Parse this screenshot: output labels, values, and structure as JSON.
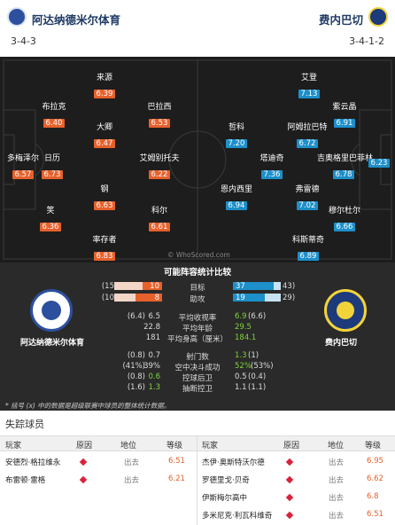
{
  "header": {
    "home_team": "阿达纳德米尔体育",
    "away_team": "费内巴切",
    "home_formation": "3-4-3",
    "away_formation": "3-4-1-2"
  },
  "pitch": {
    "watermark": "© WhoScored.com",
    "home_players": [
      {
        "name": "来源",
        "rating": "6.39"
      },
      {
        "name": "布拉克",
        "rating": "6.40"
      },
      {
        "name": "巴拉西",
        "rating": "6.53"
      },
      {
        "name": "大卿",
        "rating": "6.47"
      },
      {
        "name": "多梅泽尔",
        "rating": "6.57"
      },
      {
        "name": "日历",
        "rating": "6.73"
      },
      {
        "name": "艾姆别托夫",
        "rating": "6.22"
      },
      {
        "name": "钢",
        "rating": "6.63"
      },
      {
        "name": "笑",
        "rating": "6.36"
      },
      {
        "name": "科尔",
        "rating": "6.61"
      },
      {
        "name": "率存者",
        "rating": "6.83"
      }
    ],
    "away_players": [
      {
        "name": "艾登",
        "rating": "7.13"
      },
      {
        "name": "紫云晶",
        "rating": "6.91"
      },
      {
        "name": "哲科",
        "rating": "7.20"
      },
      {
        "name": "阿姆拉巴特",
        "rating": "6.72"
      },
      {
        "name": "吉奥格里巴菲林",
        "rating": "6.78"
      },
      {
        "name": "",
        "rating": "6.23"
      },
      {
        "name": "塔迪奇",
        "rating": "7.36"
      },
      {
        "name": "恩内西里",
        "rating": "6.94"
      },
      {
        "name": "弗雷德",
        "rating": "7.02"
      },
      {
        "name": "穆尔杜尔",
        "rating": "6.66"
      },
      {
        "name": "科斯蒂奇",
        "rating": "6.89"
      }
    ]
  },
  "stats": {
    "title": "可能阵容统计比较",
    "home_label": "阿达纳德米尔体育",
    "away_label": "费内巴切",
    "bars": [
      {
        "label": "目标",
        "home": "10",
        "home_paren": "(15",
        "away": "37",
        "away_paren": "43)",
        "home_frac": 0.4,
        "away_frac": 0.86
      },
      {
        "label": "助攻",
        "home": "8",
        "home_paren": "(10",
        "away": "19",
        "away_paren": "29)",
        "home_frac": 0.55,
        "away_frac": 0.66
      }
    ],
    "rows": [
      {
        "label": "平均收视率",
        "home_paren": "(6.4)",
        "home": "6.5",
        "away": "6.9",
        "away_paren": "(6.6)",
        "away_green": true
      },
      {
        "label": "平均年龄",
        "home_paren": "",
        "home": "22.8",
        "away": "29.5",
        "away_paren": "",
        "away_green": true
      },
      {
        "label": "平均身高（厘米）",
        "home_paren": "",
        "home": "181",
        "away": "184.1",
        "away_paren": "",
        "away_green": true
      },
      {
        "label": "射门数",
        "home_paren": "(0.8)",
        "home": "0.7",
        "away": "1.3",
        "away_paren": "(1)",
        "away_green": true
      },
      {
        "label": "空中决斗成功",
        "home_paren": "(41%)",
        "home": "39%",
        "away": "52%",
        "away_paren": "(53%)",
        "away_green": true
      },
      {
        "label": "控球后卫",
        "home_paren": "(0.8)",
        "home": "0.6",
        "home_green": true,
        "away": "0.5",
        "away_paren": "(0.4)",
        "away_green": false
      },
      {
        "label": "抽断控卫",
        "home_paren": "(1.6)",
        "home": "1.3",
        "home_green": true,
        "away": "1.1",
        "away_paren": "(1.1)",
        "away_green": false
      }
    ],
    "footnote": "* 括号 (x) 中的数据是超级联赛中球员的整体统计数据。"
  },
  "missing": {
    "title": "失踪球员",
    "headers": {
      "player": "玩家",
      "reason": "原因",
      "position": "地位",
      "rating": "等级"
    },
    "home": [
      {
        "name": "安德烈·格拉维永",
        "position": "出去",
        "rating": "6.51"
      },
      {
        "name": "布雷顿·雷格",
        "position": "出去",
        "rating": "6.21"
      }
    ],
    "away": [
      {
        "name": "杰伊·奥斯特沃尔德",
        "position": "出去",
        "rating": "6.95"
      },
      {
        "name": "罗德里戈·贝奇",
        "position": "出去",
        "rating": "6.62"
      },
      {
        "name": "伊斯梅尔高中",
        "position": "出去",
        "rating": "6.8"
      },
      {
        "name": "多米尼克·利瓦科维奇",
        "position": "出去",
        "rating": "6.51"
      }
    ]
  }
}
